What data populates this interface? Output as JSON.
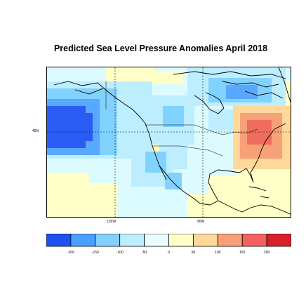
{
  "title": "Predicted Sea Level Pressure Anomalies April 2018",
  "axes": {
    "lat_labels": [
      {
        "text": "45N"
      }
    ],
    "lon_labels": [
      {
        "text": "135W"
      },
      {
        "text": "90W"
      }
    ]
  },
  "colorbar": {
    "levels": [
      "-200",
      "-150",
      "-100",
      "-50",
      "0",
      "50",
      "100",
      "150",
      "200"
    ],
    "colors": [
      "#2050f0",
      "#4aa0ff",
      "#82d2ff",
      "#bdeeff",
      "#e8fdff",
      "#ffffc8",
      "#ffd89a",
      "#f8a078",
      "#f26060",
      "#d8202a"
    ]
  },
  "map_colors": {
    "strong_negative": "#2a5cf5",
    "negative": "#59a8ff",
    "weak_negative": "#9fdcff",
    "near_zero": "#dcfbff",
    "weak_positive": "#ffffc8",
    "positive": "#ffd89a",
    "strong_positive": "#f8a078",
    "peak_positive": "#f06d5e"
  }
}
